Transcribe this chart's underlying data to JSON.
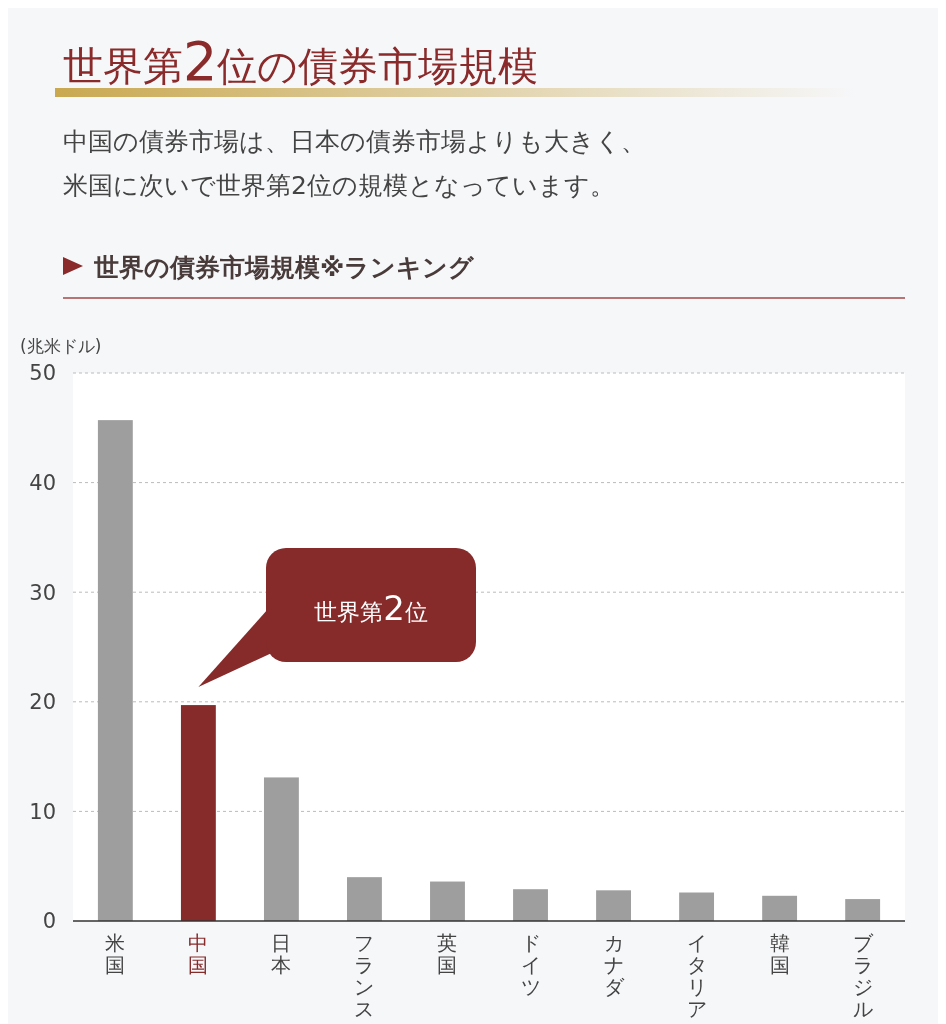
{
  "chart_data": {
    "type": "bar",
    "title": "世界第2位の債券市場規模",
    "subtitle": "中国の債券市場は、日本の債券市場よりも大きく、米国に次いで世界第2位の規模となっています。",
    "ylabel": "(兆米ドル)",
    "annotations": [
      "世界の債券市場規模※ランキング",
      "世界第2位"
    ],
    "categories": [
      "米国",
      "中国",
      "日本",
      "フランス",
      "英国",
      "ドイツ",
      "カナダ",
      "イタリア",
      "韓国",
      "ブラジル"
    ],
    "values": [
      45.7,
      19.7,
      13.1,
      4.0,
      3.6,
      2.9,
      2.8,
      2.6,
      2.3,
      2.0
    ],
    "colors": [
      "#9e9e9e",
      "#862a2a",
      "#9e9e9e",
      "#9e9e9e",
      "#9e9e9e",
      "#9e9e9e",
      "#9e9e9e",
      "#9e9e9e",
      "#9e9e9e",
      "#9e9e9e"
    ],
    "ylim": [
      0,
      50
    ],
    "yticks": [
      0,
      10,
      20,
      30,
      40,
      50
    ],
    "grid": "y"
  }
}
